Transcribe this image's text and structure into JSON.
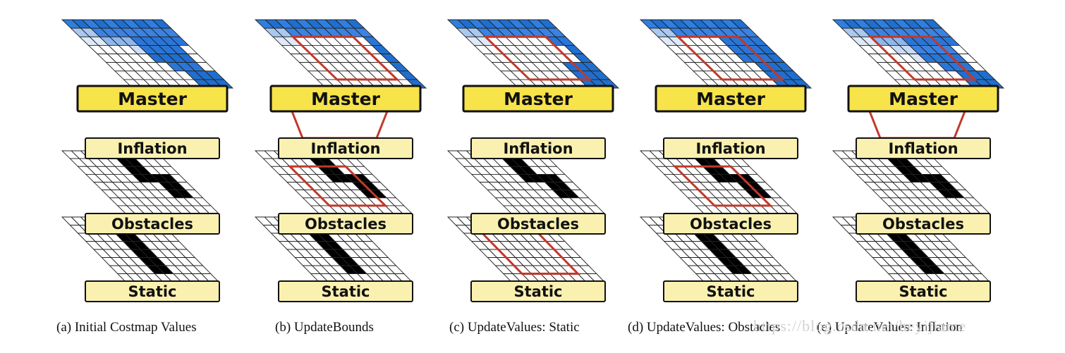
{
  "layer_names": {
    "master": "Master",
    "inflation": "Inflation",
    "obstacles": "Obstacles",
    "static": "Static"
  },
  "panels": [
    {
      "caption": "(a) Initial Costmap Values"
    },
    {
      "caption": "(b) UpdateBounds"
    },
    {
      "caption": "(c) UpdateValues: Static"
    },
    {
      "caption": "(d) UpdateValues: Obstacles"
    },
    {
      "caption": "(e) UpdateValues: Inflation"
    }
  ],
  "watermark": "https://blog.csdn.net/heyijiame",
  "colors": {
    "label_fill_master": "#f7e34a",
    "label_fill_layer": "#faf1b0",
    "cell_cost": "#1a6fd4",
    "bounds_box": "#c0392b",
    "grid_line": "#222222"
  }
}
